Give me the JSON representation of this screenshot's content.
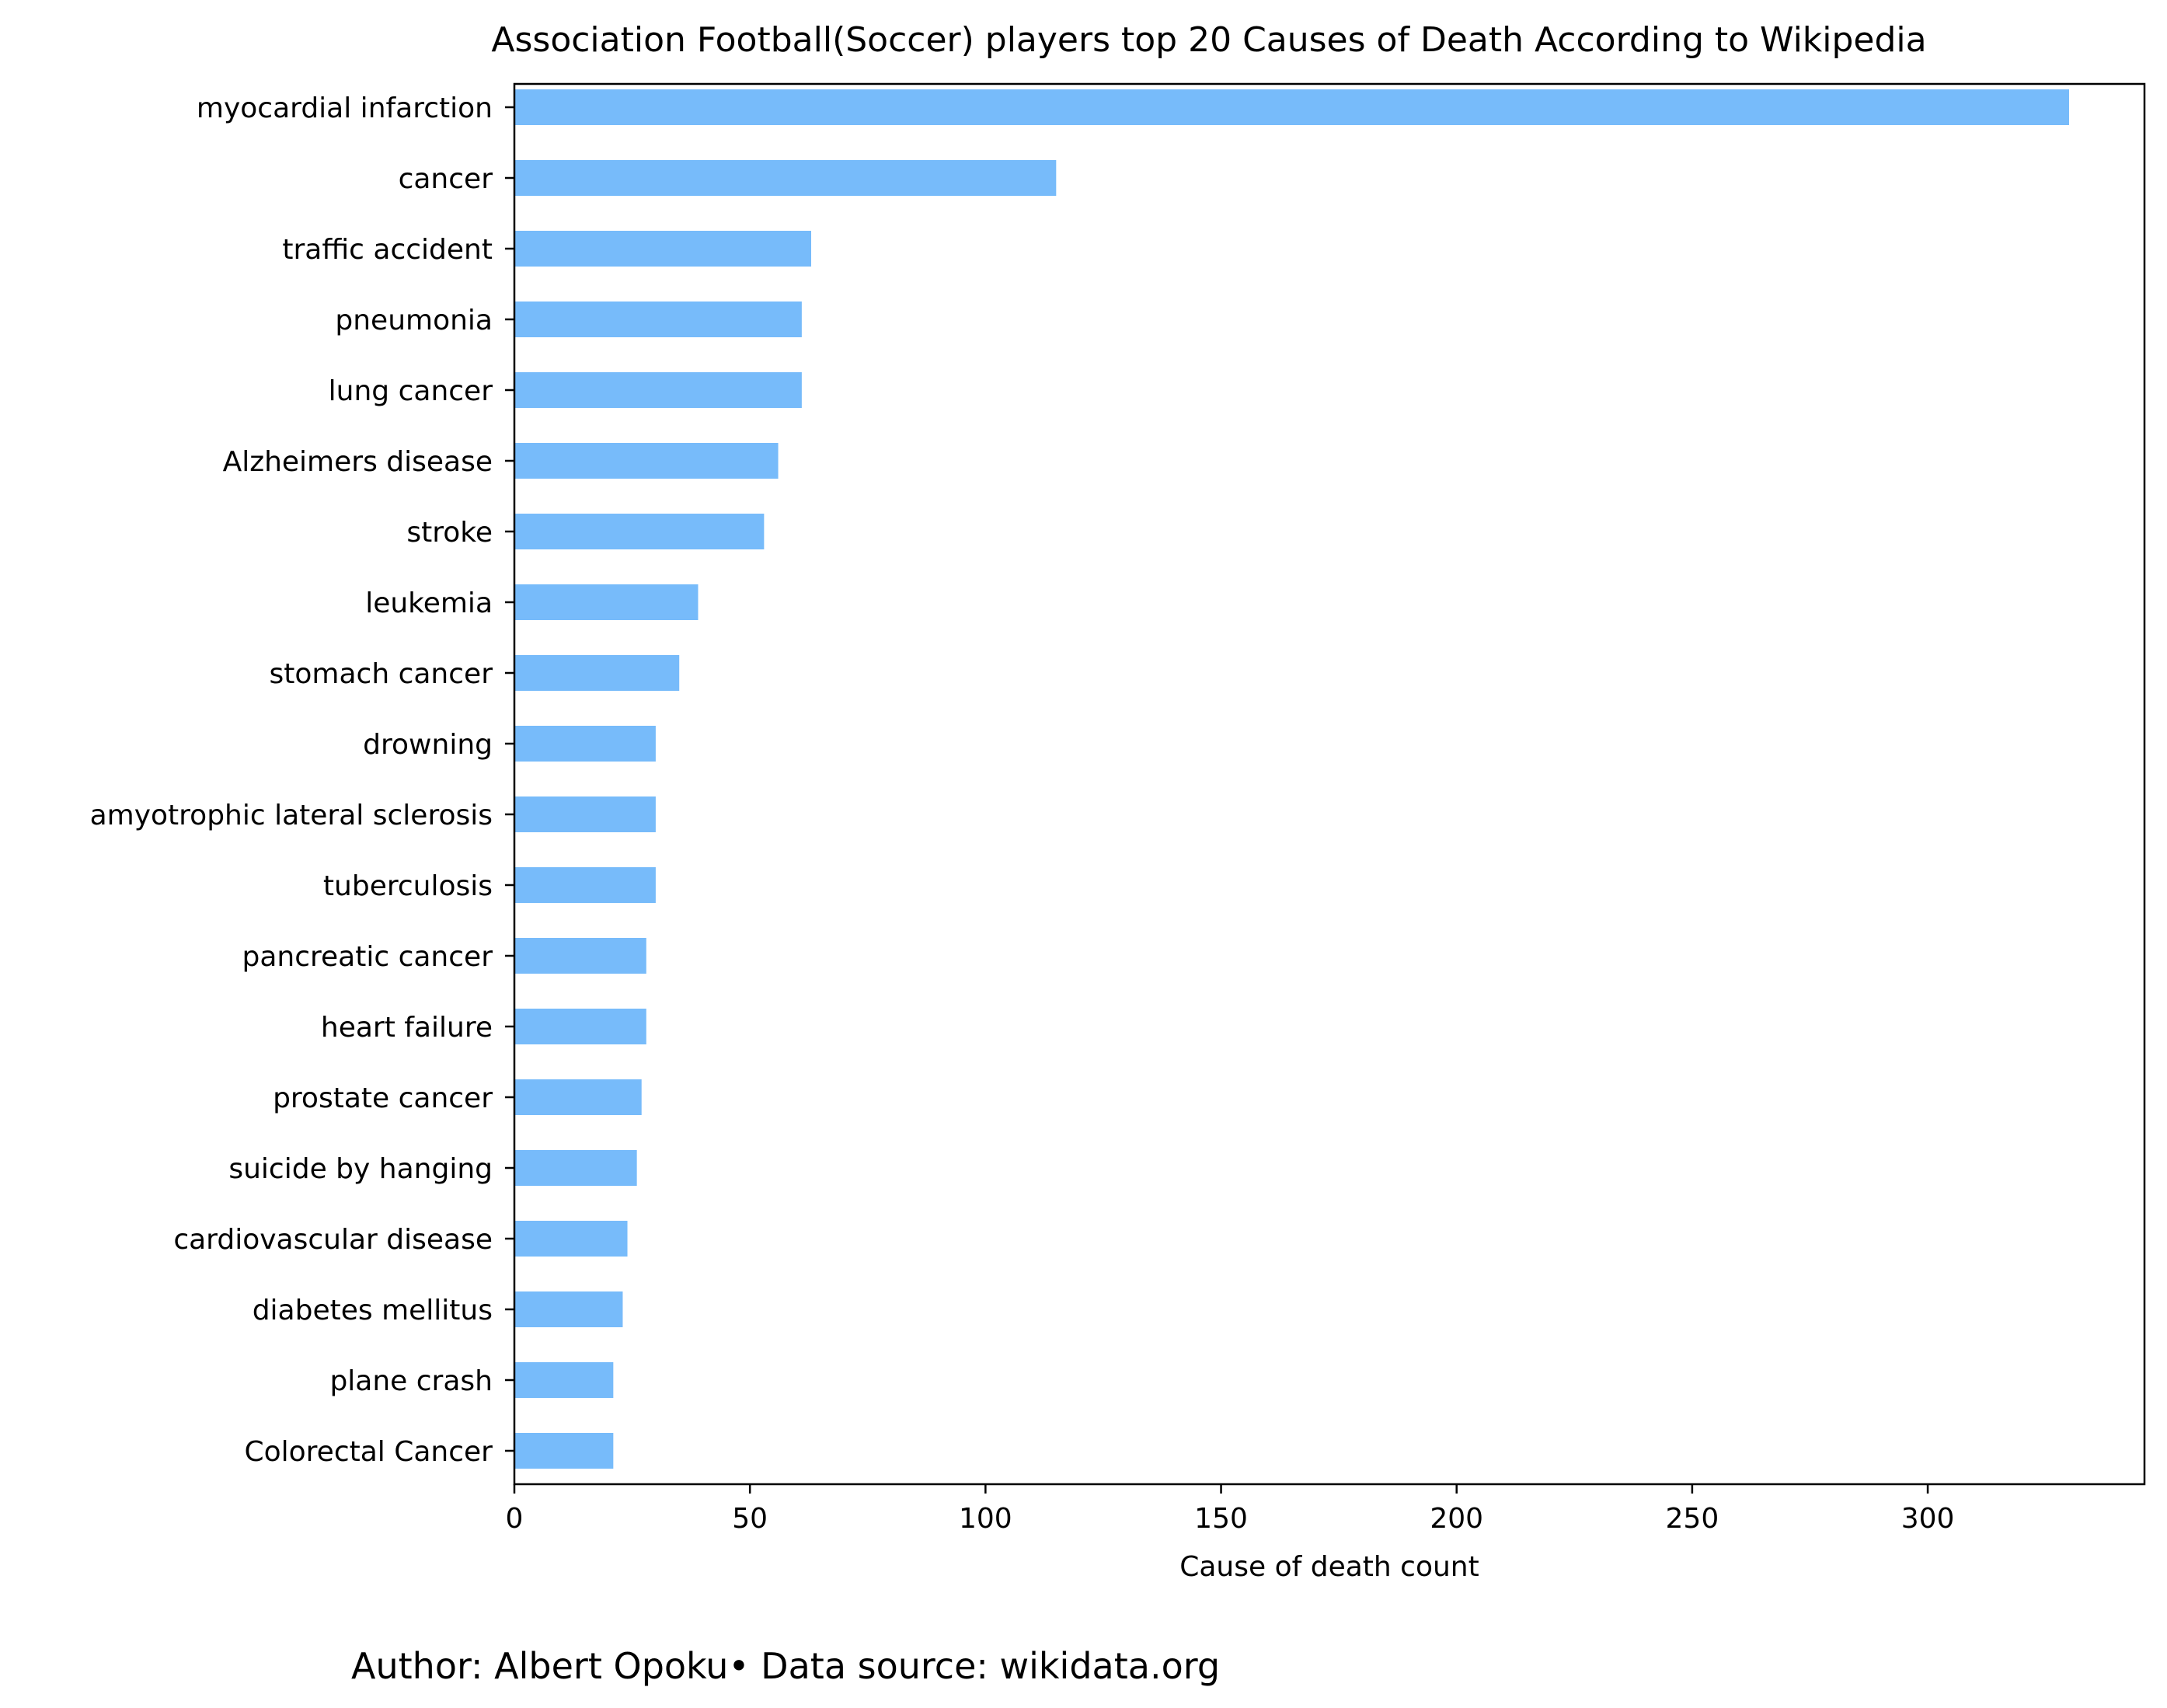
{
  "chart_data": {
    "type": "bar",
    "orientation": "horizontal",
    "title": "Association Football(Soccer) players top 20 Causes of Death According to Wikipedia",
    "xlabel": "Cause of death count",
    "ylabel": "",
    "xlim": [
      0,
      346
    ],
    "xticks": [
      0,
      50,
      100,
      150,
      200,
      250,
      300
    ],
    "grid": false,
    "bar_color": "#77bbfa",
    "categories": [
      "myocardial infarction",
      "cancer",
      "traffic accident",
      "pneumonia",
      "lung cancer",
      "Alzheimers disease",
      "stroke",
      "leukemia",
      "stomach cancer",
      "drowning",
      "amyotrophic lateral sclerosis",
      "tuberculosis",
      "pancreatic cancer",
      "heart failure",
      "prostate cancer",
      "suicide by hanging",
      "cardiovascular disease",
      "diabetes mellitus",
      "plane crash",
      "Colorectal Cancer"
    ],
    "values": [
      330,
      115,
      63,
      61,
      61,
      56,
      53,
      39,
      35,
      30,
      30,
      30,
      28,
      28,
      27,
      26,
      24,
      23,
      21,
      21
    ]
  },
  "credit": "Author: Albert Opoku• Data source: wikidata.org"
}
